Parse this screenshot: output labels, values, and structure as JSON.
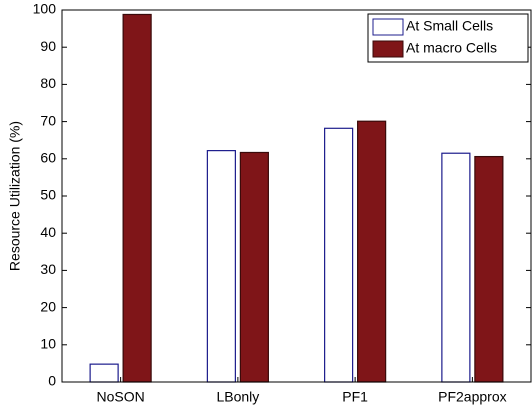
{
  "chart_data": {
    "type": "bar",
    "y_label": "Resource Utilization (%)",
    "categories": [
      "NoSON",
      "LBonly",
      "PF1",
      "PF2approx"
    ],
    "series": [
      {
        "name": "At Small Cells",
        "color": "#ffffff",
        "edge": "#1c1c8c",
        "values": [
          4.8,
          62.2,
          68.2,
          61.5
        ]
      },
      {
        "name": "At macro Cells",
        "color": "#7f1518",
        "edge": "#3a0a0a",
        "values": [
          98.8,
          61.7,
          70.1,
          60.6
        ]
      }
    ],
    "ylim": [
      0,
      100
    ],
    "yticks": [
      0,
      10,
      20,
      30,
      40,
      50,
      60,
      70,
      80,
      90,
      100
    ],
    "legend": "top-right"
  }
}
